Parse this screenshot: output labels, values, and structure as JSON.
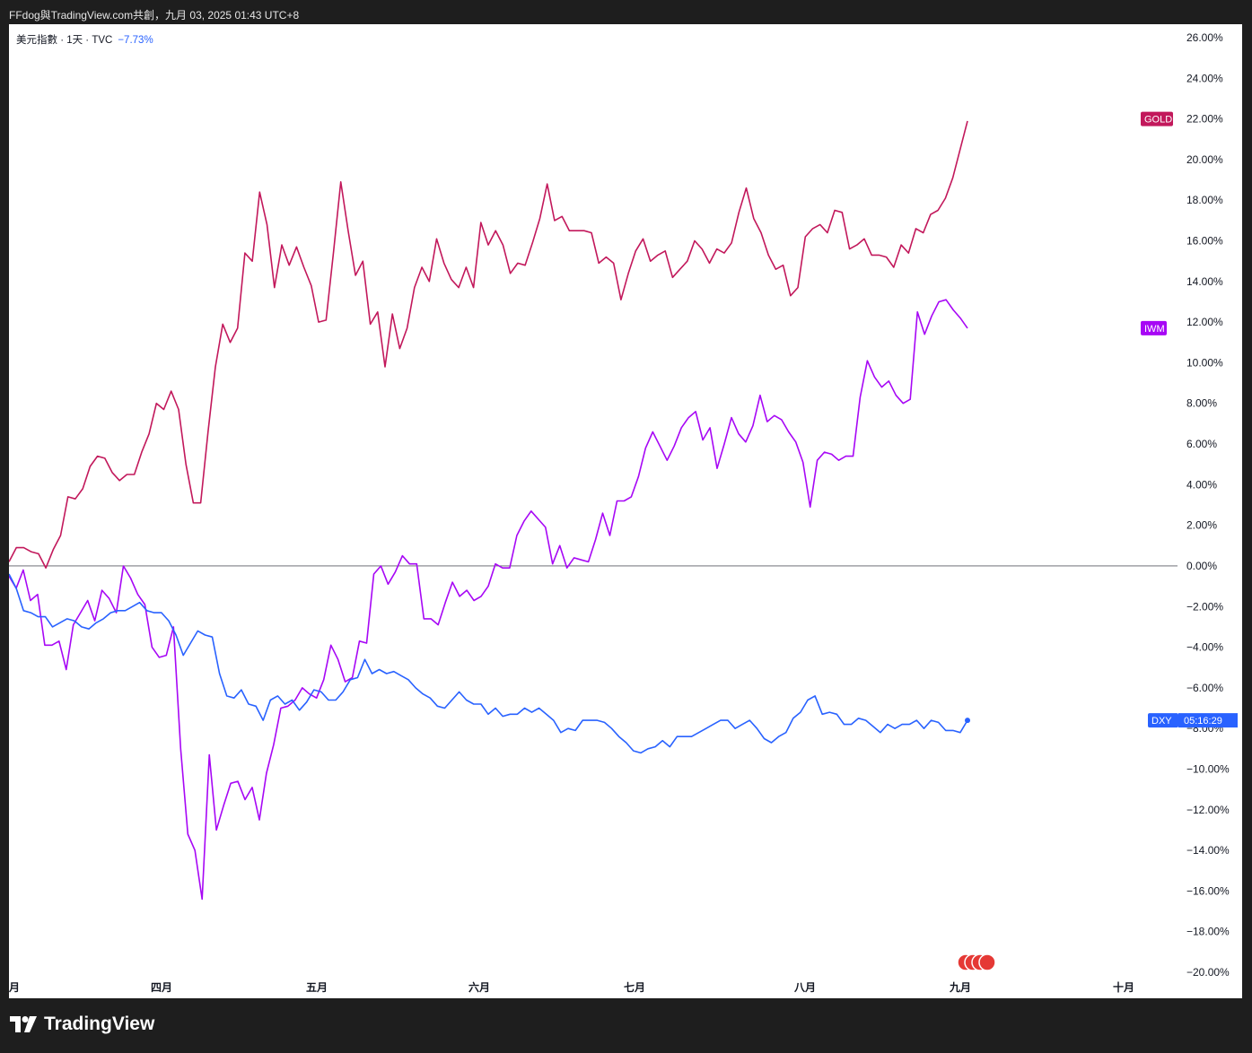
{
  "header": {
    "title": "FFdog與TradingView.com共創，九月 03, 2025 01:43 UTC+8"
  },
  "legend": {
    "symbol": "美元指數 · 1天 · TVC",
    "change": "−7.73%"
  },
  "brand": {
    "name": "TradingView"
  },
  "colors": {
    "GOLD": "#c2185b",
    "IWM": "#a707f5",
    "DXY": "#2962ff",
    "zero_line": "#131722",
    "axis_text": "#131722"
  },
  "chart_data": {
    "type": "line",
    "x_labels": [
      "月",
      "四月",
      "五月",
      "六月",
      "七月",
      "八月",
      "九月",
      "十月"
    ],
    "y_ticks": [
      "26.00%",
      "24.00%",
      "22.00%",
      "20.00%",
      "18.00%",
      "16.00%",
      "14.00%",
      "12.00%",
      "10.00%",
      "8.00%",
      "6.00%",
      "4.00%",
      "2.00%",
      "0.00%",
      "−2.00%",
      "−4.00%",
      "−6.00%",
      "−8.00%",
      "−10.00%",
      "−12.00%",
      "−14.00%",
      "−16.00%",
      "−18.00%",
      "−20.00%"
    ],
    "ylim": [
      -20,
      26
    ],
    "zero_line": true,
    "series": [
      {
        "name": "GOLD",
        "badge": "GOLD",
        "color": "#c2185b",
        "values": [
          0.2,
          0.9,
          0.9,
          0.7,
          0.6,
          -0.1,
          0.8,
          1.5,
          3.4,
          3.3,
          3.8,
          4.9,
          5.4,
          5.3,
          4.6,
          4.2,
          4.5,
          4.5,
          5.6,
          6.5,
          8.0,
          7.7,
          8.6,
          7.7,
          5.0,
          3.1,
          3.1,
          6.6,
          9.8,
          11.9,
          11.0,
          11.7,
          15.4,
          15.0,
          18.4,
          16.8,
          13.7,
          15.8,
          14.8,
          15.7,
          14.7,
          13.8,
          12.0,
          12.1,
          15.4,
          18.9,
          16.5,
          14.3,
          15.0,
          11.9,
          12.5,
          9.8,
          12.4,
          10.7,
          11.7,
          13.7,
          14.7,
          14.0,
          16.1,
          14.9,
          14.1,
          13.7,
          14.7,
          13.7,
          16.9,
          15.8,
          16.5,
          15.8,
          14.4,
          14.9,
          14.8,
          15.9,
          17.1,
          18.8,
          17.0,
          17.2,
          16.5,
          16.5,
          16.5,
          16.4,
          14.9,
          15.2,
          14.9,
          13.1,
          14.4,
          15.5,
          16.1,
          15.0,
          15.3,
          15.5,
          14.2,
          14.6,
          15.0,
          16.0,
          15.6,
          14.9,
          15.6,
          15.4,
          15.9,
          17.4,
          18.6,
          17.1,
          16.4,
          15.3,
          14.6,
          14.8,
          13.3,
          13.7,
          16.2,
          16.6,
          16.8,
          16.4,
          17.5,
          17.4,
          15.6,
          15.8,
          16.1,
          15.3,
          15.3,
          15.2,
          14.7,
          15.8,
          15.4,
          16.6,
          16.4,
          17.3,
          17.5,
          18.1,
          19.1,
          20.5,
          21.9
        ]
      },
      {
        "name": "IWM",
        "badge": "IWM",
        "color": "#a707f5",
        "values": [
          -0.5,
          -1.1,
          -0.2,
          -1.7,
          -1.4,
          -3.9,
          -3.9,
          -3.7,
          -5.1,
          -2.9,
          -2.3,
          -1.7,
          -2.7,
          -1.2,
          -1.6,
          -2.3,
          0.0,
          -0.6,
          -1.4,
          -1.9,
          -4.0,
          -4.5,
          -4.4,
          -3.0,
          -9.0,
          -13.2,
          -14.0,
          -16.4,
          -9.3,
          -13.0,
          -11.8,
          -10.7,
          -10.6,
          -11.5,
          -10.9,
          -12.5,
          -10.2,
          -8.8,
          -7.0,
          -6.9,
          -6.6,
          -6.0,
          -6.3,
          -6.5,
          -5.6,
          -3.9,
          -4.6,
          -5.7,
          -5.5,
          -3.7,
          -3.8,
          -0.4,
          0.0,
          -0.9,
          -0.3,
          0.5,
          0.1,
          0.1,
          -2.6,
          -2.6,
          -2.9,
          -1.8,
          -0.8,
          -1.5,
          -1.2,
          -1.7,
          -1.5,
          -1.0,
          0.1,
          -0.1,
          -0.1,
          1.5,
          2.2,
          2.7,
          2.3,
          1.9,
          0.1,
          1.0,
          -0.1,
          0.4,
          0.3,
          0.2,
          1.3,
          2.6,
          1.5,
          3.2,
          3.2,
          3.4,
          4.4,
          5.8,
          6.6,
          5.9,
          5.2,
          5.9,
          6.8,
          7.3,
          7.6,
          6.2,
          6.8,
          4.8,
          6.0,
          7.3,
          6.5,
          6.1,
          6.9,
          8.4,
          7.1,
          7.4,
          7.2,
          6.6,
          6.1,
          5.1,
          2.9,
          5.2,
          5.6,
          5.5,
          5.2,
          5.4,
          5.4,
          8.3,
          10.1,
          9.3,
          8.8,
          9.1,
          8.4,
          8.0,
          8.2,
          12.5,
          11.4,
          12.3,
          13.0,
          13.1,
          12.6,
          12.2,
          11.7
        ]
      },
      {
        "name": "DXY",
        "badge": "DXY",
        "badge_time": "05:16:29",
        "color": "#2962ff",
        "values": [
          -0.4,
          -1.1,
          -2.2,
          -2.3,
          -2.5,
          -2.5,
          -3.0,
          -2.8,
          -2.6,
          -2.7,
          -3.0,
          -3.1,
          -2.8,
          -2.6,
          -2.3,
          -2.2,
          -2.2,
          -2.0,
          -1.8,
          -2.2,
          -2.3,
          -2.3,
          -2.7,
          -3.4,
          -4.4,
          -3.8,
          -3.2,
          -3.4,
          -3.5,
          -5.3,
          -6.4,
          -6.5,
          -6.1,
          -6.8,
          -6.9,
          -7.6,
          -6.6,
          -6.4,
          -6.8,
          -6.6,
          -7.1,
          -6.7,
          -6.1,
          -6.2,
          -6.6,
          -6.6,
          -6.2,
          -5.6,
          -5.5,
          -4.6,
          -5.3,
          -5.1,
          -5.3,
          -5.2,
          -5.4,
          -5.6,
          -6.0,
          -6.3,
          -6.5,
          -6.9,
          -7.0,
          -6.6,
          -6.2,
          -6.6,
          -6.8,
          -6.8,
          -7.3,
          -7.0,
          -7.4,
          -7.3,
          -7.3,
          -7.0,
          -7.2,
          -7.0,
          -7.3,
          -7.6,
          -8.2,
          -8.0,
          -8.1,
          -7.6,
          -7.6,
          -7.6,
          -7.7,
          -8.0,
          -8.4,
          -8.7,
          -9.1,
          -9.2,
          -9.0,
          -8.9,
          -8.6,
          -8.9,
          -8.4,
          -8.4,
          -8.4,
          -8.2,
          -8.0,
          -7.8,
          -7.6,
          -7.6,
          -8.0,
          -7.8,
          -7.6,
          -8.0,
          -8.5,
          -8.7,
          -8.4,
          -8.2,
          -7.5,
          -7.2,
          -6.6,
          -6.4,
          -7.3,
          -7.2,
          -7.3,
          -7.8,
          -7.8,
          -7.5,
          -7.6,
          -7.9,
          -8.2,
          -7.8,
          -8.0,
          -7.8,
          -7.8,
          -7.6,
          -8.0,
          -7.6,
          -7.7,
          -8.1,
          -8.1,
          -8.2,
          -7.6
        ]
      }
    ]
  }
}
